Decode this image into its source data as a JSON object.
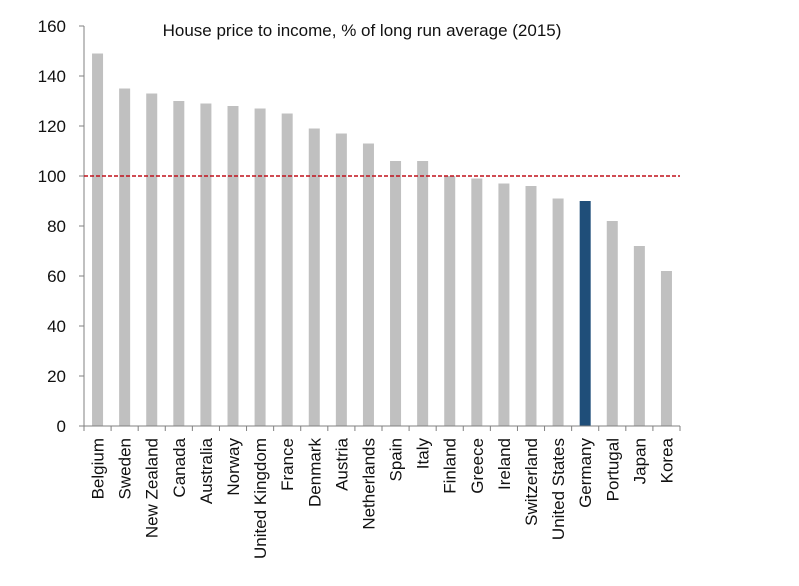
{
  "chart_data": {
    "type": "bar",
    "title": "House price to income, % of long run average (2015)",
    "xlabel": "",
    "ylabel": "",
    "ylim": [
      0,
      160
    ],
    "yticks": [
      0,
      20,
      40,
      60,
      80,
      100,
      120,
      140,
      160
    ],
    "grid": false,
    "reference_line": {
      "value": 100,
      "style": "dashed",
      "color": "#c0111a"
    },
    "categories": [
      "Belgium",
      "Sweden",
      "New Zealand",
      "Canada",
      "Australia",
      "Norway",
      "United Kingdom",
      "France",
      "Denmark",
      "Austria",
      "Netherlands",
      "Spain",
      "Italy",
      "Finland",
      "Greece",
      "Ireland",
      "Switzerland",
      "United States",
      "Germany",
      "Portugal",
      "Japan",
      "Korea"
    ],
    "values": [
      149,
      135,
      133,
      130,
      129,
      128,
      127,
      125,
      119,
      117,
      113,
      106,
      106,
      100,
      99,
      97,
      96,
      91,
      90,
      82,
      72,
      62
    ],
    "highlight": "Germany",
    "colors": {
      "bar": "#c0c0c0",
      "highlight": "#1f4e79",
      "axis": "#808080"
    }
  }
}
